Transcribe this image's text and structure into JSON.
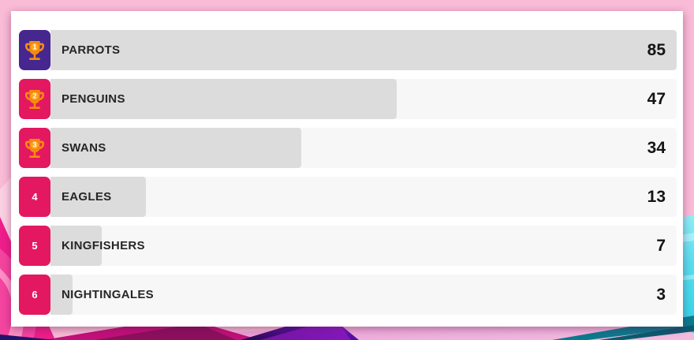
{
  "app": {
    "type": "team-points-leaderboard"
  },
  "leaderboard": {
    "max_score": 85,
    "rows": [
      {
        "rank": "1",
        "name": "PARROTS",
        "score": 85,
        "has_trophy": true,
        "badge_color": "#46278F"
      },
      {
        "rank": "2",
        "name": "PENGUINS",
        "score": 47,
        "has_trophy": true,
        "badge_color": "#E31860"
      },
      {
        "rank": "3",
        "name": "SWANS",
        "score": 34,
        "has_trophy": true,
        "badge_color": "#E31860"
      },
      {
        "rank": "4",
        "name": "EAGLES",
        "score": 13,
        "has_trophy": false,
        "badge_color": "#E31860"
      },
      {
        "rank": "5",
        "name": "KINGFISHERS",
        "score": 7,
        "has_trophy": false,
        "badge_color": "#E31860"
      },
      {
        "rank": "6",
        "name": "NIGHTINGALES",
        "score": 3,
        "has_trophy": false,
        "badge_color": "#E31860"
      }
    ]
  },
  "chart_data": {
    "type": "bar",
    "orientation": "horizontal",
    "categories": [
      "PARROTS",
      "PENGUINS",
      "SWANS",
      "EAGLES",
      "KINGFISHERS",
      "NIGHTINGALES"
    ],
    "values": [
      85,
      47,
      34,
      13,
      7,
      3
    ],
    "ranks": [
      1,
      2,
      3,
      4,
      5,
      6
    ],
    "title": "",
    "xlabel": "",
    "ylabel": "",
    "xlim": [
      0,
      85
    ],
    "grid": false,
    "legend": false,
    "value_labels_position": "right"
  },
  "icons": {
    "trophy": "trophy-icon"
  },
  "colors": {
    "badge_first": "#46278F",
    "badge_other": "#E31860",
    "bar_fill": "#DCDCDC",
    "bar_track": "#F7F7F7",
    "card_bg": "#FFFFFF",
    "text_dark": "#262626",
    "trophy_body": "#F68A10",
    "trophy_circle": "#FFA41F",
    "wallpaper_pink": "#F9BBD6",
    "wallpaper_magenta": "#EE1E8A",
    "wallpaper_violet": "#5A0FA8",
    "wallpaper_cyan": "#57DEEE"
  }
}
